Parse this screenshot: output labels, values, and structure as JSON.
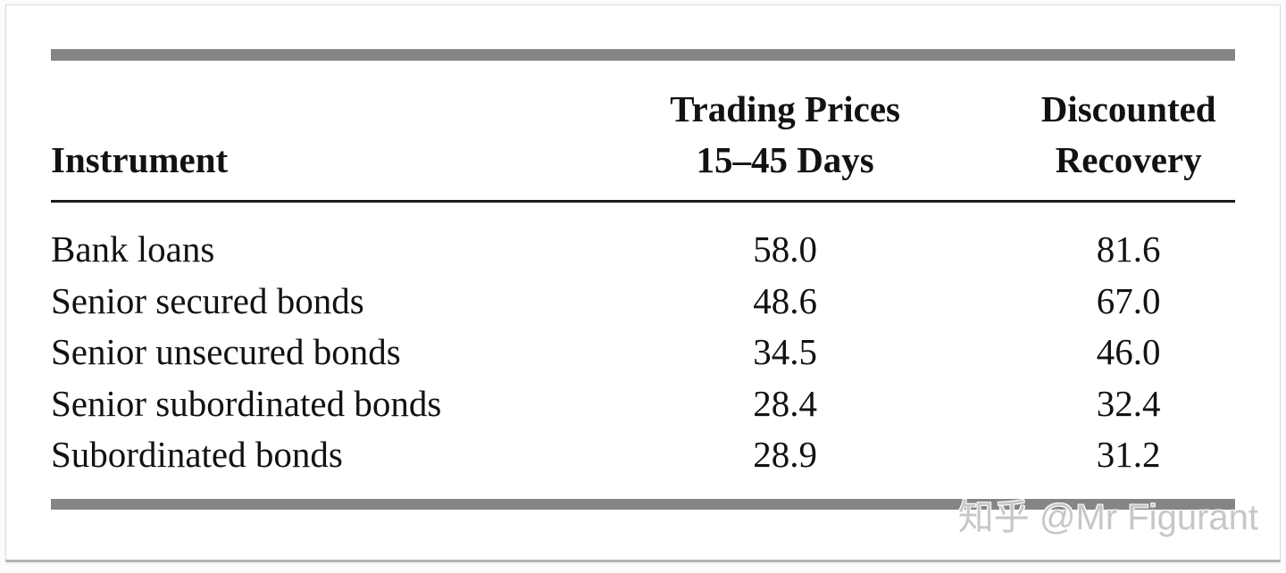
{
  "page": {
    "watermark": "知乎 @Mr Figurant"
  },
  "table": {
    "header": {
      "instrument": "Instrument",
      "col2_line1": "Trading Prices",
      "col2_line2": "15–45 Days",
      "col3_line1": "Discounted",
      "col3_line2": "Recovery"
    },
    "rows": [
      {
        "instrument": "Bank loans",
        "trading_price": "58.0",
        "discounted_recovery": "81.6"
      },
      {
        "instrument": "Senior secured bonds",
        "trading_price": "48.6",
        "discounted_recovery": "67.0"
      },
      {
        "instrument": "Senior unsecured bonds",
        "trading_price": "34.5",
        "discounted_recovery": "46.0"
      },
      {
        "instrument": "Senior subordinated bonds",
        "trading_price": "28.4",
        "discounted_recovery": "32.4"
      },
      {
        "instrument": "Subordinated bonds",
        "trading_price": "28.9",
        "discounted_recovery": "31.2"
      }
    ]
  },
  "colors": {
    "thick_rule_gray": "#858585",
    "header_rule_black": "#1b1b1b",
    "text": "#121212",
    "watermark_gray": "#c7c7c7",
    "card_background": "#ffffff",
    "card_border": "#dadada"
  },
  "chart_data": {
    "type": "table",
    "title": "",
    "categories": [
      "Bank loans",
      "Senior secured bonds",
      "Senior unsecured bonds",
      "Senior subordinated bonds",
      "Subordinated bonds"
    ],
    "series": [
      {
        "name": "Trading Prices 15–45 Days",
        "values": [
          58.0,
          48.6,
          34.5,
          28.4,
          28.9
        ]
      },
      {
        "name": "Discounted Recovery",
        "values": [
          81.6,
          67.0,
          46.0,
          32.4,
          31.2
        ]
      }
    ]
  }
}
